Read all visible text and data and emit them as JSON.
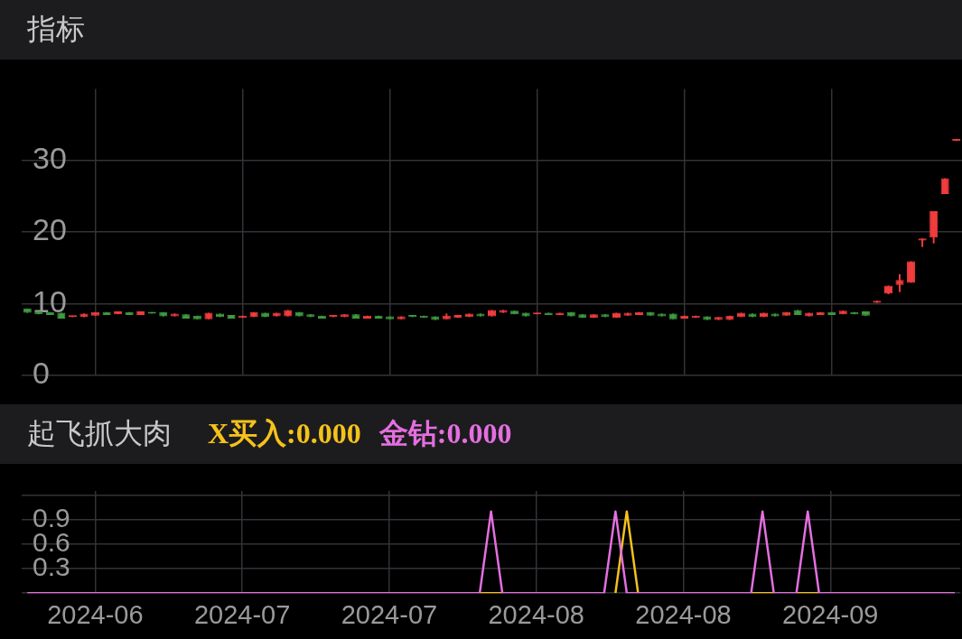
{
  "chart_data": [
    {
      "type": "candlestick",
      "title": "指标",
      "categories": [
        null,
        null,
        null,
        null,
        null,
        null,
        "2024-06",
        null,
        null,
        null,
        null,
        null,
        null,
        null,
        null,
        null,
        null,
        null,
        null,
        "2024-07",
        null,
        null,
        null,
        null,
        null,
        null,
        null,
        null,
        null,
        null,
        null,
        null,
        "2024-07",
        null,
        null,
        null,
        null,
        null,
        null,
        null,
        null,
        null,
        null,
        null,
        null,
        "2024-08",
        null,
        null,
        null,
        null,
        null,
        null,
        null,
        null,
        null,
        null,
        null,
        null,
        "2024-08",
        null,
        null,
        null,
        null,
        null,
        null,
        null,
        null,
        null,
        null,
        null,
        null,
        "2024-09",
        null,
        null,
        null,
        null,
        null,
        null,
        null,
        null,
        null,
        null,
        null
      ],
      "ohlc": [
        [
          9.3,
          9.3,
          8.7,
          8.7
        ],
        [
          8.9,
          8.9,
          8.5,
          8.5
        ],
        [
          8.8,
          8.8,
          8.4,
          8.4
        ],
        [
          8.7,
          8.7,
          7.9,
          7.9
        ],
        [
          8.1,
          8.3,
          8.1,
          8.3
        ],
        [
          8.1,
          8.6,
          8.1,
          8.6
        ],
        [
          8.3,
          8.8,
          8.3,
          8.8
        ],
        [
          8.8,
          8.8,
          8.4,
          8.4
        ],
        [
          8.5,
          8.9,
          8.5,
          8.9
        ],
        [
          8.8,
          8.8,
          8.4,
          8.4
        ],
        [
          8.4,
          8.9,
          8.4,
          8.9
        ],
        [
          8.8,
          8.8,
          8.6,
          8.6
        ],
        [
          8.8,
          8.8,
          8.2,
          8.2
        ],
        [
          8.2,
          8.6,
          8.2,
          8.6
        ],
        [
          8.5,
          8.5,
          7.9,
          7.9
        ],
        [
          8.3,
          8.3,
          7.8,
          7.8
        ],
        [
          7.8,
          8.7,
          7.8,
          8.7
        ],
        [
          8.6,
          8.6,
          8.1,
          8.1
        ],
        [
          8.4,
          8.4,
          7.9,
          7.9
        ],
        [
          8.0,
          8.3,
          8.0,
          8.3
        ],
        [
          8.1,
          8.8,
          8.1,
          8.8
        ],
        [
          8.7,
          8.7,
          8.1,
          8.1
        ],
        [
          8.2,
          8.7,
          8.2,
          8.7
        ],
        [
          8.2,
          9.1,
          8.2,
          9.1
        ],
        [
          8.8,
          8.8,
          8.2,
          8.2
        ],
        [
          8.5,
          8.5,
          8.1,
          8.1
        ],
        [
          8.3,
          8.3,
          7.9,
          7.9
        ],
        [
          8.1,
          8.4,
          8.1,
          8.4
        ],
        [
          8.1,
          8.5,
          8.1,
          8.5
        ],
        [
          8.5,
          8.5,
          7.9,
          7.9
        ],
        [
          7.9,
          8.3,
          7.9,
          8.3
        ],
        [
          8.3,
          8.3,
          7.9,
          7.9
        ],
        [
          8.2,
          8.2,
          7.8,
          7.8
        ],
        [
          7.8,
          8.2,
          7.8,
          8.2
        ],
        [
          8.4,
          8.4,
          8.1,
          8.1
        ],
        [
          8.3,
          8.3,
          8.0,
          8.0
        ],
        [
          8.2,
          8.2,
          7.7,
          7.7
        ],
        [
          7.8,
          8.6,
          7.8,
          8.3
        ],
        [
          8.0,
          8.4,
          8.0,
          8.4
        ],
        [
          8.1,
          8.6,
          8.1,
          8.6
        ],
        [
          8.6,
          8.6,
          8.2,
          8.2
        ],
        [
          8.2,
          9.1,
          8.2,
          9.1
        ],
        [
          8.7,
          9.1,
          8.7,
          9.1
        ],
        [
          9.0,
          9.0,
          8.5,
          8.5
        ],
        [
          8.7,
          8.7,
          8.2,
          8.2
        ],
        [
          8.5,
          8.7,
          8.5,
          8.7
        ],
        [
          8.7,
          8.7,
          8.4,
          8.4
        ],
        [
          8.4,
          8.7,
          8.4,
          8.7
        ],
        [
          8.8,
          8.8,
          8.2,
          8.2
        ],
        [
          8.5,
          8.5,
          8.0,
          8.0
        ],
        [
          8.0,
          8.5,
          8.0,
          8.5
        ],
        [
          8.5,
          8.5,
          8.1,
          8.1
        ],
        [
          8.0,
          8.7,
          8.0,
          8.7
        ],
        [
          8.3,
          8.7,
          8.3,
          8.7
        ],
        [
          8.4,
          8.8,
          8.4,
          8.8
        ],
        [
          8.8,
          8.8,
          8.3,
          8.3
        ],
        [
          8.6,
          8.6,
          8.2,
          8.2
        ],
        [
          8.6,
          8.6,
          7.8,
          7.8
        ],
        [
          7.9,
          8.3,
          7.9,
          8.3
        ],
        [
          8.0,
          8.3,
          8.0,
          8.3
        ],
        [
          8.2,
          8.2,
          7.7,
          7.7
        ],
        [
          7.7,
          8.1,
          7.7,
          8.1
        ],
        [
          7.7,
          8.3,
          7.7,
          8.3
        ],
        [
          8.1,
          8.7,
          8.1,
          8.7
        ],
        [
          8.6,
          8.6,
          8.1,
          8.1
        ],
        [
          8.1,
          8.7,
          8.1,
          8.7
        ],
        [
          8.6,
          8.6,
          8.2,
          8.2
        ],
        [
          8.3,
          8.8,
          8.3,
          8.8
        ],
        [
          9.1,
          9.1,
          8.4,
          8.4
        ],
        [
          8.2,
          8.7,
          8.2,
          8.7
        ],
        [
          8.4,
          8.8,
          8.4,
          8.8
        ],
        [
          8.8,
          8.8,
          8.4,
          8.4
        ],
        [
          8.5,
          9.0,
          8.5,
          9.0
        ],
        [
          8.8,
          8.8,
          8.5,
          8.5
        ],
        [
          8.9,
          8.9,
          8.3,
          8.3
        ],
        [
          10.1,
          10.4,
          10.1,
          10.4
        ],
        [
          11.4,
          12.5,
          11.3,
          12.5
        ],
        [
          12.6,
          14.1,
          11.6,
          13.3
        ],
        [
          12.9,
          15.9,
          12.9,
          15.9
        ],
        [
          18.8,
          19.1,
          17.9,
          19.1
        ],
        [
          19.2,
          22.9,
          18.4,
          22.9
        ],
        [
          25.3,
          27.5,
          25.3,
          27.5
        ],
        [
          32.7,
          33.0,
          32.7,
          33.0
        ]
      ],
      "colors": [
        "#3e9b3e",
        "#3e9b3e",
        "#3e9b3e",
        "#3e9b3e",
        "#f03c3c",
        "#f03c3c",
        "#f03c3c",
        "#3e9b3e",
        "#f03c3c",
        "#3e9b3e",
        "#f03c3c",
        "#3e9b3e",
        "#3e9b3e",
        "#f03c3c",
        "#3e9b3e",
        "#3e9b3e",
        "#f03c3c",
        "#3e9b3e",
        "#3e9b3e",
        "#f03c3c",
        "#f03c3c",
        "#3e9b3e",
        "#f03c3c",
        "#f03c3c",
        "#3e9b3e",
        "#3e9b3e",
        "#3e9b3e",
        "#f03c3c",
        "#f03c3c",
        "#3e9b3e",
        "#f03c3c",
        "#3e9b3e",
        "#3e9b3e",
        "#f03c3c",
        "#3e9b3e",
        "#3e9b3e",
        "#3e9b3e",
        "#f03c3c",
        "#f03c3c",
        "#f03c3c",
        "#3e9b3e",
        "#f03c3c",
        "#f03c3c",
        "#3e9b3e",
        "#3e9b3e",
        "#f03c3c",
        "#3e9b3e",
        "#f03c3c",
        "#3e9b3e",
        "#3e9b3e",
        "#f03c3c",
        "#3e9b3e",
        "#f03c3c",
        "#f03c3c",
        "#f03c3c",
        "#3e9b3e",
        "#3e9b3e",
        "#3e9b3e",
        "#f03c3c",
        "#f03c3c",
        "#3e9b3e",
        "#f03c3c",
        "#f03c3c",
        "#f03c3c",
        "#3e9b3e",
        "#f03c3c",
        "#3e9b3e",
        "#f03c3c",
        "#3e9b3e",
        "#f03c3c",
        "#f03c3c",
        "#3e9b3e",
        "#f03c3c",
        "#3e9b3e",
        "#3e9b3e",
        "#f03c3c",
        "#f03c3c",
        "#f03c3c",
        "#f03c3c",
        "#f03c3c",
        "#f03c3c",
        "#f03c3c",
        "#f03c3c"
      ],
      "ylim": [
        0,
        40
      ],
      "yticks": [
        0,
        10,
        20,
        30
      ],
      "grid": true,
      "tick_labels": "y"
    },
    {
      "type": "line",
      "title": "起飞抓大肉",
      "categories": [
        null,
        null,
        null,
        null,
        null,
        null,
        "2024-06",
        null,
        null,
        null,
        null,
        null,
        null,
        null,
        null,
        null,
        null,
        null,
        null,
        "2024-07",
        null,
        null,
        null,
        null,
        null,
        null,
        null,
        null,
        null,
        null,
        null,
        null,
        "2024-07",
        null,
        null,
        null,
        null,
        null,
        null,
        null,
        null,
        null,
        null,
        null,
        null,
        "2024-08",
        null,
        null,
        null,
        null,
        null,
        null,
        null,
        null,
        null,
        null,
        null,
        null,
        "2024-08",
        null,
        null,
        null,
        null,
        null,
        null,
        null,
        null,
        null,
        null,
        null,
        null,
        "2024-09",
        null,
        null,
        null,
        null,
        null,
        null,
        null,
        null,
        null,
        null,
        null
      ],
      "series": [
        {
          "name": "X买入:0.000",
          "color": "#f5c21b",
          "values": [
            null,
            null,
            null,
            null,
            null,
            null,
            null,
            null,
            null,
            null,
            null,
            null,
            null,
            null,
            null,
            null,
            null,
            null,
            null,
            null,
            null,
            null,
            null,
            null,
            null,
            null,
            null,
            null,
            null,
            null,
            null,
            null,
            null,
            null,
            null,
            null,
            null,
            null,
            null,
            null,
            0,
            0,
            0,
            null,
            null,
            null,
            null,
            null,
            null,
            null,
            null,
            null,
            0,
            1,
            0,
            null,
            null,
            null,
            null,
            null,
            null,
            null,
            null,
            null,
            0,
            0,
            0,
            null,
            0,
            0,
            0,
            null,
            null,
            null,
            null,
            null,
            null,
            null,
            null,
            null,
            null,
            null,
            null
          ]
        },
        {
          "name": "金钻:0.000",
          "color": "#e46fe0",
          "values": [
            0,
            0,
            0,
            0,
            0,
            0,
            0,
            0,
            0,
            0,
            0,
            0,
            0,
            0,
            0,
            0,
            0,
            0,
            0,
            0,
            0,
            0,
            0,
            0,
            0,
            0,
            0,
            0,
            0,
            0,
            0,
            0,
            0,
            0,
            0,
            0,
            0,
            0,
            0,
            0,
            0,
            1,
            0,
            0,
            0,
            0,
            0,
            0,
            0,
            0,
            0,
            0,
            1,
            0,
            0,
            0,
            0,
            0,
            0,
            0,
            0,
            0,
            0,
            0,
            0,
            1,
            0,
            0,
            0,
            1,
            0,
            0,
            0,
            0,
            0,
            0,
            0,
            0,
            0,
            0,
            0,
            0,
            0
          ]
        }
      ],
      "ylim": [
        0,
        1.25
      ],
      "yticks": [
        {
          "value": 0,
          "label": null
        },
        0.3,
        0.6,
        0.9,
        {
          "value": 1.2,
          "label": null
        }
      ],
      "grid": true,
      "legend": "top left"
    }
  ]
}
